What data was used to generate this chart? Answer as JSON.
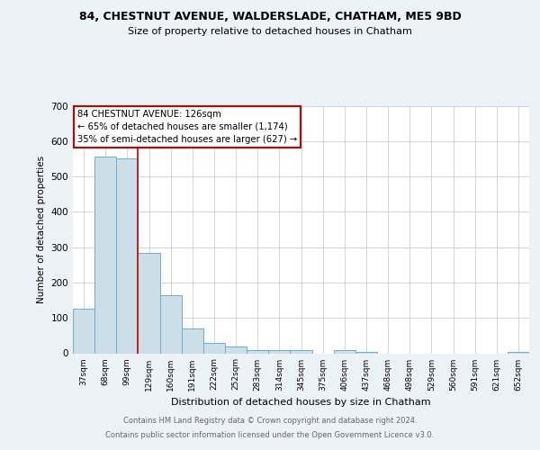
{
  "title": "84, CHESTNUT AVENUE, WALDERSLADE, CHATHAM, ME5 9BD",
  "subtitle": "Size of property relative to detached houses in Chatham",
  "xlabel": "Distribution of detached houses by size in Chatham",
  "ylabel": "Number of detached properties",
  "bar_labels": [
    "37sqm",
    "68sqm",
    "99sqm",
    "129sqm",
    "160sqm",
    "191sqm",
    "222sqm",
    "252sqm",
    "283sqm",
    "314sqm",
    "345sqm",
    "375sqm",
    "406sqm",
    "437sqm",
    "468sqm",
    "498sqm",
    "529sqm",
    "560sqm",
    "591sqm",
    "621sqm",
    "652sqm"
  ],
  "bar_values": [
    127,
    555,
    550,
    285,
    165,
    70,
    30,
    18,
    10,
    8,
    8,
    0,
    8,
    5,
    0,
    0,
    0,
    0,
    0,
    0,
    5
  ],
  "bar_color": "#ccdee8",
  "bar_edge_color": "#6aafd4",
  "property_line_x": 2.5,
  "annotation_line1": "84 CHESTNUT AVENUE: 126sqm",
  "annotation_line2": "← 65% of detached houses are smaller (1,174)",
  "annotation_line3": "35% of semi-detached houses are larger (627) →",
  "annotation_box_color": "#ffffff",
  "annotation_box_edge_color": "#cc0000",
  "annotation_text_color": "#000000",
  "red_line_color": "#cc0000",
  "ylim": [
    0,
    700
  ],
  "yticks": [
    0,
    100,
    200,
    300,
    400,
    500,
    600,
    700
  ],
  "footer_line1": "Contains HM Land Registry data © Crown copyright and database right 2024.",
  "footer_line2": "Contains public sector information licensed under the Open Government Licence v3.0.",
  "background_color": "#edf2f7",
  "plot_background_color": "#ffffff",
  "grid_color": "#cccccc"
}
